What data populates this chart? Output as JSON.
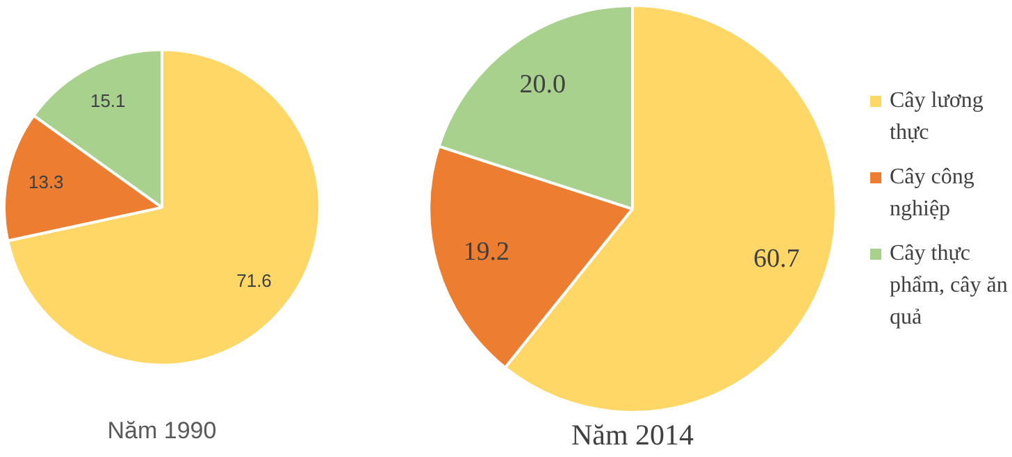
{
  "chart_data": [
    {
      "type": "pie",
      "title": "Năm 1990",
      "categories": [
        null,
        null,
        null
      ],
      "values": [
        71.6,
        13.3,
        15.1
      ],
      "colors": [
        "#fed766",
        "#ed7d31",
        "#a9d18e"
      ],
      "value_labels": [
        "71.6",
        "13.3",
        "15.1"
      ]
    },
    {
      "type": "pie",
      "title": "Năm 2014",
      "categories": [
        "Cây lương thực",
        "Cây công nghiệp",
        "Cây thực phẩm, cây ăn quả"
      ],
      "values": [
        60.7,
        19.2,
        20.0
      ],
      "colors": [
        "#fed766",
        "#ed7d31",
        "#a9d18e"
      ],
      "value_labels": [
        "60.7",
        "19.2",
        "20.0"
      ],
      "legend": "right"
    }
  ]
}
